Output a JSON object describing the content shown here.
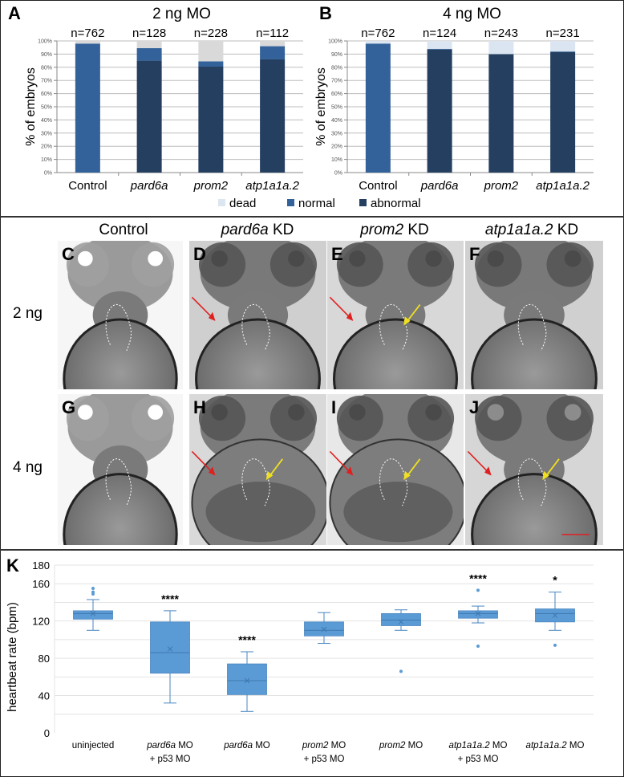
{
  "chart_data": [
    {
      "id": "A",
      "type": "bar",
      "stacked": true,
      "panel_label": "A",
      "title": "2 ng MO",
      "xlabel": "",
      "ylabel": "% of embryos",
      "ylim": [
        0,
        100
      ],
      "yticks": [
        "0%",
        "10%",
        "20%",
        "30%",
        "40%",
        "50%",
        "60%",
        "70%",
        "80%",
        "90%",
        "100%"
      ],
      "grid": true,
      "categories": [
        "Control",
        "pard6a",
        "prom2",
        "atp1a1a.2"
      ],
      "categories_italic": [
        false,
        true,
        true,
        true
      ],
      "n_labels": [
        "n=762",
        "n=128",
        "n=228",
        "n=112"
      ],
      "series": [
        {
          "name": "abnormal",
          "color": "#243f60",
          "values": [
            0,
            85,
            80.5,
            86
          ]
        },
        {
          "name": "normal",
          "color": "#33629a",
          "values": [
            98,
            9.5,
            4,
            10
          ]
        },
        {
          "name": "dead",
          "color": "#d9d9d9",
          "values": [
            2,
            5.5,
            15.5,
            4
          ]
        }
      ]
    },
    {
      "id": "B",
      "type": "bar",
      "stacked": true,
      "panel_label": "B",
      "title": "4 ng MO",
      "xlabel": "",
      "ylabel": "% of embryos",
      "ylim": [
        0,
        100
      ],
      "yticks": [
        "0%",
        "10%",
        "20%",
        "30%",
        "40%",
        "50%",
        "60%",
        "70%",
        "80%",
        "90%",
        "100%"
      ],
      "grid": true,
      "categories": [
        "Control",
        "pard6a",
        "prom2",
        "atp1a1a.2"
      ],
      "categories_italic": [
        false,
        true,
        true,
        true
      ],
      "n_labels": [
        "n=762",
        "n=124",
        "n=243",
        "n=231"
      ],
      "series": [
        {
          "name": "abnormal",
          "color": "#243f60",
          "values": [
            0,
            93.5,
            90,
            91.5
          ]
        },
        {
          "name": "normal",
          "color": "#33629a",
          "values": [
            98,
            0.5,
            0,
            0.5
          ]
        },
        {
          "name": "dead",
          "color": "#dbe5f1",
          "values": [
            2,
            6,
            10,
            8
          ]
        }
      ]
    },
    {
      "id": "K",
      "type": "box",
      "panel_label": "K",
      "title": "",
      "xlabel": "",
      "ylabel": "heartbeat rate (bpm)",
      "ylim": [
        0,
        180
      ],
      "yticks": [
        "0",
        "40",
        "80",
        "120",
        "160",
        "180"
      ],
      "gridlines": [
        0,
        20,
        40,
        60,
        80,
        100,
        120,
        140,
        160,
        180
      ],
      "grid": true,
      "box_color": "#5b9bd5",
      "categories": [
        {
          "line1": "uninjected",
          "line1_italic_part": "",
          "line2": ""
        },
        {
          "line1": " MO",
          "line1_italic_part": "pard6a",
          "line2": "+ p53 MO"
        },
        {
          "line1": " MO",
          "line1_italic_part": "pard6a",
          "line2": ""
        },
        {
          "line1": " MO",
          "line1_italic_part": "prom2",
          "line2": "+ p53 MO"
        },
        {
          "line1": " MO",
          "line1_italic_part": "prom2",
          "line2": ""
        },
        {
          "line1": " MO",
          "line1_italic_part": "atp1a1a.2",
          "line2": "+ p53 MO"
        },
        {
          "line1": " MO",
          "line1_italic_part": "atp1a1a.2",
          "line2": ""
        }
      ],
      "boxes": [
        {
          "whisker_low": 110,
          "q1": 122,
          "median": 128,
          "q3": 131,
          "whisker_high": 143,
          "mean": 128,
          "outliers": [
            149,
            151,
            155
          ],
          "significance": ""
        },
        {
          "whisker_low": 32,
          "q1": 64,
          "median": 86,
          "q3": 119,
          "whisker_high": 131,
          "mean": 90,
          "outliers": [],
          "significance": "****"
        },
        {
          "whisker_low": 23,
          "q1": 41,
          "median": 56,
          "q3": 74,
          "whisker_high": 87,
          "mean": 56,
          "outliers": [],
          "significance": "****"
        },
        {
          "whisker_low": 96,
          "q1": 104,
          "median": 110,
          "q3": 119,
          "whisker_high": 129,
          "mean": 111,
          "outliers": [],
          "significance": ""
        },
        {
          "whisker_low": 110,
          "q1": 115,
          "median": 121,
          "q3": 128,
          "whisker_high": 132,
          "mean": 119,
          "outliers": [
            66
          ],
          "significance": ""
        },
        {
          "whisker_low": 118,
          "q1": 123,
          "median": 128,
          "q3": 131,
          "whisker_high": 136,
          "mean": 128,
          "outliers": [
            153,
            93
          ],
          "significance": "****"
        },
        {
          "whisker_low": 110,
          "q1": 119,
          "median": 128,
          "q3": 133,
          "whisker_high": 151,
          "mean": 126,
          "outliers": [
            94
          ],
          "significance": "*"
        }
      ]
    }
  ],
  "legend": {
    "items": [
      {
        "label": "dead",
        "color": "#dce6f0"
      },
      {
        "label": "normal",
        "color": "#33629a"
      },
      {
        "label": "abnormal",
        "color": "#243f60"
      }
    ]
  },
  "image_grid": {
    "columns": [
      {
        "gene": "",
        "suffix": "Control"
      },
      {
        "gene": "pard6a",
        "suffix": " KD"
      },
      {
        "gene": "prom2",
        "suffix": " KD"
      },
      {
        "gene": "atp1a1a.2",
        "suffix": " KD"
      }
    ],
    "rows": [
      {
        "label": "2 ng",
        "panels": [
          "C",
          "D",
          "E",
          "F"
        ]
      },
      {
        "label": "4 ng",
        "panels": [
          "G",
          "H",
          "I",
          "J"
        ]
      }
    ],
    "arrow_colors": {
      "red": "#e02020",
      "yellow": "#f0e020"
    }
  }
}
